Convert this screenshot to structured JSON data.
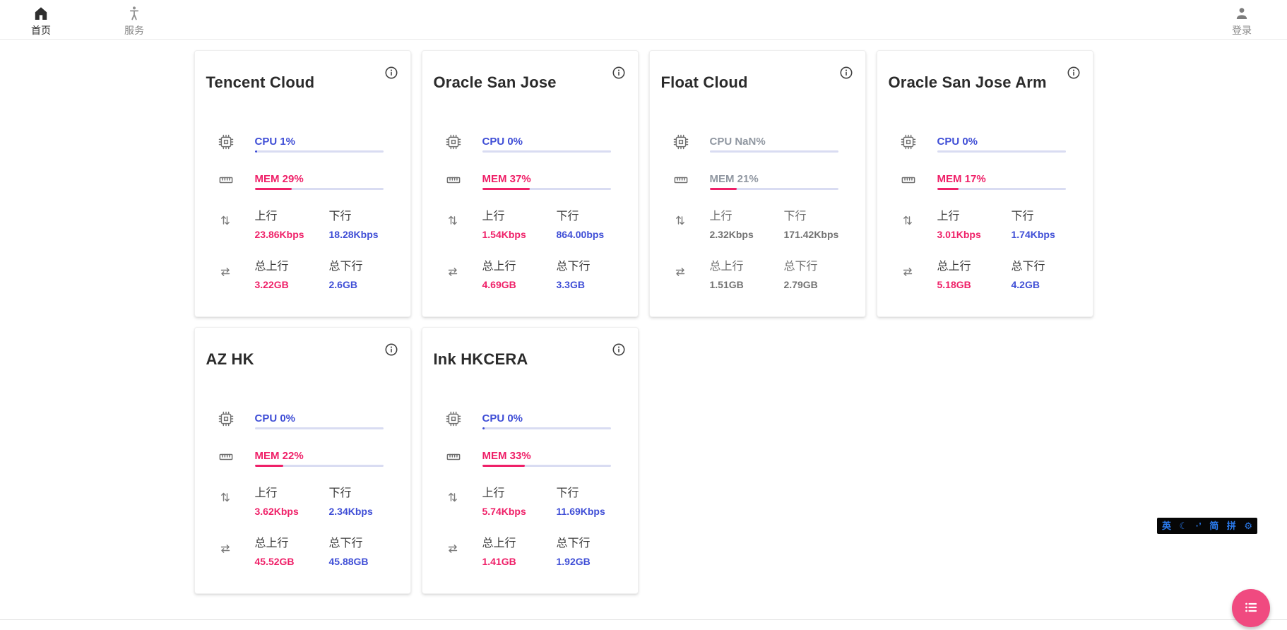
{
  "nav": {
    "items": [
      {
        "label": "首页",
        "icon": "home-icon",
        "active": true
      },
      {
        "label": "服务",
        "icon": "accessibility-icon",
        "active": false
      }
    ],
    "login": {
      "label": "登录",
      "icon": "person-icon"
    }
  },
  "labels": {
    "upload": "上行",
    "download": "下行",
    "total_upload": "总上行",
    "total_download": "总下行"
  },
  "colors": {
    "accent_blue": "#3f4ed6",
    "accent_pink": "#ef2068",
    "bar_track": "#d9dcf2",
    "fab_pink": "#f04a80",
    "ime_glyph_blue": "#2b7cf0",
    "muted_text": "#9097a1"
  },
  "servers": [
    {
      "name": "Tencent Cloud",
      "cpu_label": "CPU 1%",
      "cpu_bar_pct": 2,
      "mem_label": "MEM 29%",
      "mem_bar_pct": 29,
      "upload": "23.86Kbps",
      "download": "18.28Kbps",
      "total_upload": "3.22GB",
      "total_download": "2.6GB",
      "muted": false
    },
    {
      "name": "Oracle San Jose",
      "cpu_label": "CPU 0%",
      "cpu_bar_pct": 0,
      "mem_label": "MEM 37%",
      "mem_bar_pct": 37,
      "upload": "1.54Kbps",
      "download": "864.00bps",
      "total_upload": "4.69GB",
      "total_download": "3.3GB",
      "muted": false
    },
    {
      "name": "Float Cloud",
      "cpu_label": "CPU NaN%",
      "cpu_bar_pct": 0,
      "mem_label": "MEM 21%",
      "mem_bar_pct": 21,
      "upload": "2.32Kbps",
      "download": "171.42Kbps",
      "total_upload": "1.51GB",
      "total_download": "2.79GB",
      "muted": true
    },
    {
      "name": "Oracle San Jose Arm",
      "cpu_label": "CPU 0%",
      "cpu_bar_pct": 0,
      "mem_label": "MEM 17%",
      "mem_bar_pct": 17,
      "upload": "3.01Kbps",
      "download": "1.74Kbps",
      "total_upload": "5.18GB",
      "total_download": "4.2GB",
      "muted": false
    },
    {
      "name": "AZ HK",
      "cpu_label": "CPU 0%",
      "cpu_bar_pct": 0,
      "mem_label": "MEM 22%",
      "mem_bar_pct": 22,
      "upload": "3.62Kbps",
      "download": "2.34Kbps",
      "total_upload": "45.52GB",
      "total_download": "45.88GB",
      "muted": false
    },
    {
      "name": "Ink HKCERA",
      "cpu_label": "CPU 0%",
      "cpu_bar_pct": 2,
      "mem_label": "MEM 33%",
      "mem_bar_pct": 33,
      "upload": "5.74Kbps",
      "download": "11.69Kbps",
      "total_upload": "1.41GB",
      "total_download": "1.92GB",
      "muted": false
    }
  ],
  "ime_bar": {
    "lang": "英",
    "moon": "☾",
    "punct": "·’",
    "simplified": "简",
    "pinyin": "拼",
    "settings": "⚙"
  }
}
